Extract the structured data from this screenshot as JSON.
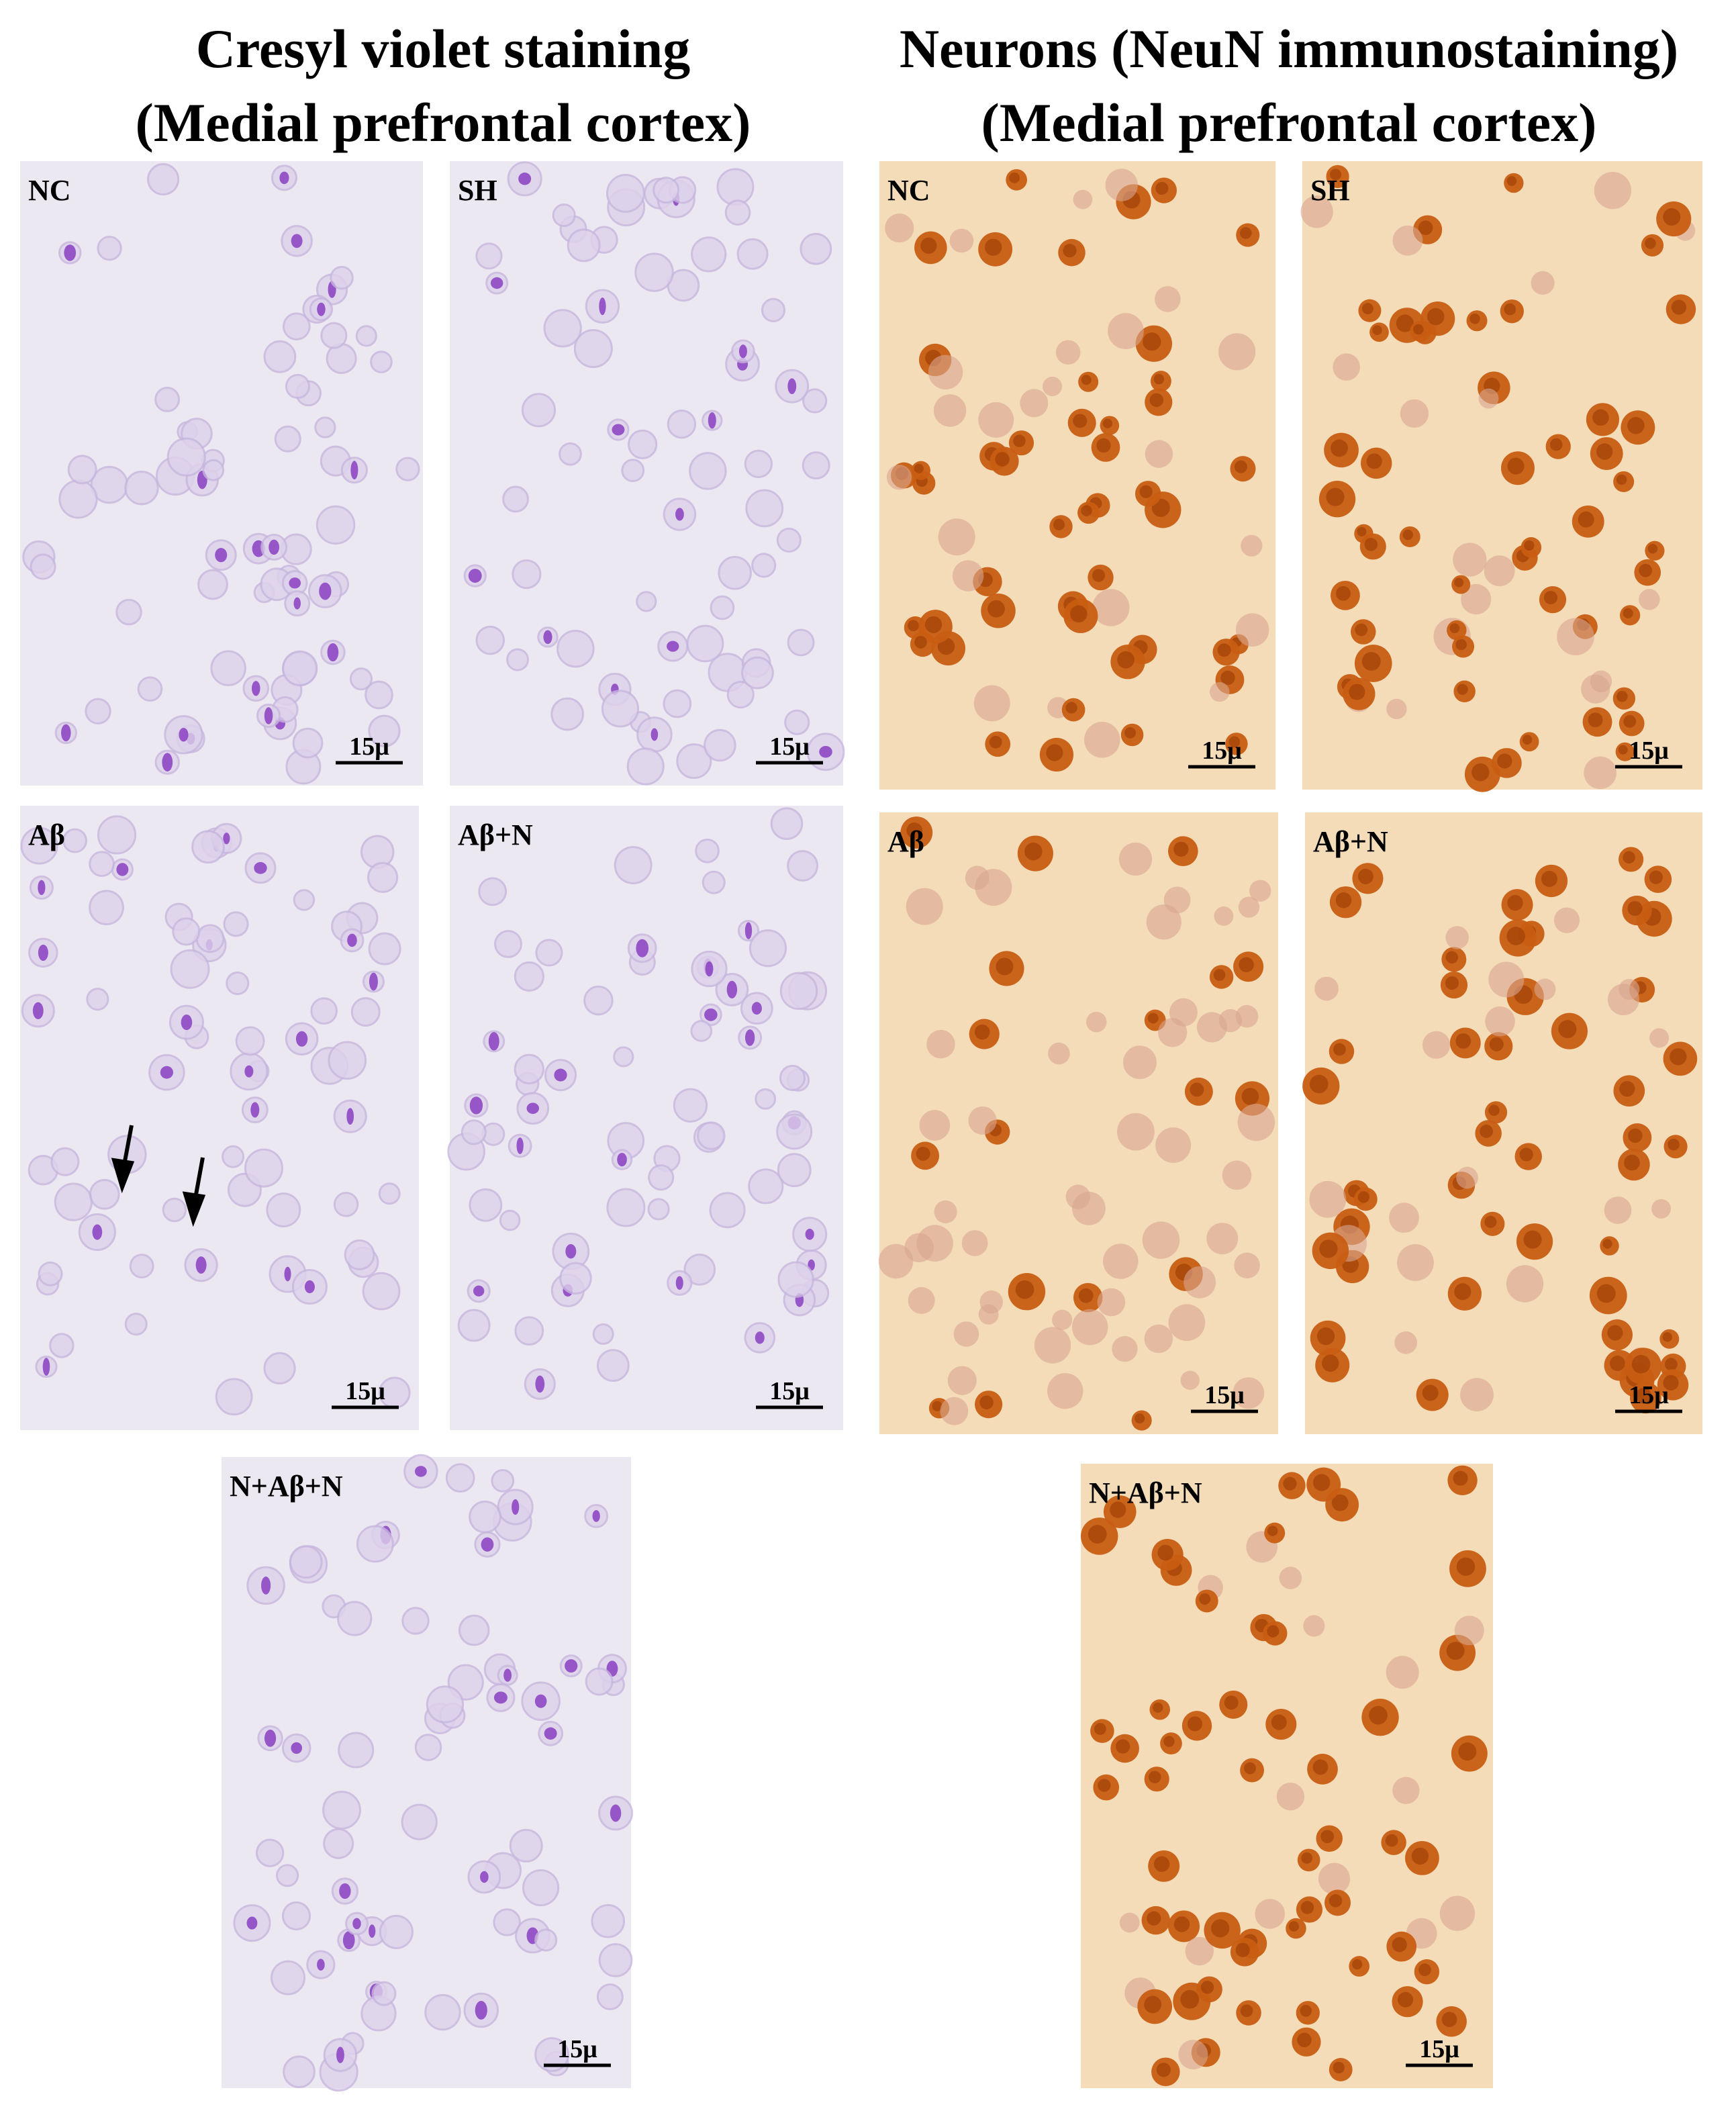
{
  "columns": [
    {
      "title_line1": "Cresyl violet staining",
      "title_line2": "(Medial prefrontal cortex)",
      "panels": [
        {
          "label": "NC",
          "scale": "15μ"
        },
        {
          "label": "SH",
          "scale": "15μ"
        },
        {
          "label": "Aβ",
          "scale": "15μ"
        },
        {
          "label": "Aβ+N",
          "scale": "15μ"
        },
        {
          "label": "N+Aβ+N",
          "scale": "15μ"
        }
      ]
    },
    {
      "title_line1": "Neurons (NeuN immunostaining)",
      "title_line2": "(Medial prefrontal cortex)",
      "panels": [
        {
          "label": "NC",
          "scale": "15μ"
        },
        {
          "label": "SH",
          "scale": "15μ"
        },
        {
          "label": "Aβ",
          "scale": "15μ"
        },
        {
          "label": "Aβ+N",
          "scale": "15μ"
        },
        {
          "label": "N+Aβ+N",
          "scale": "15μ"
        }
      ]
    }
  ]
}
